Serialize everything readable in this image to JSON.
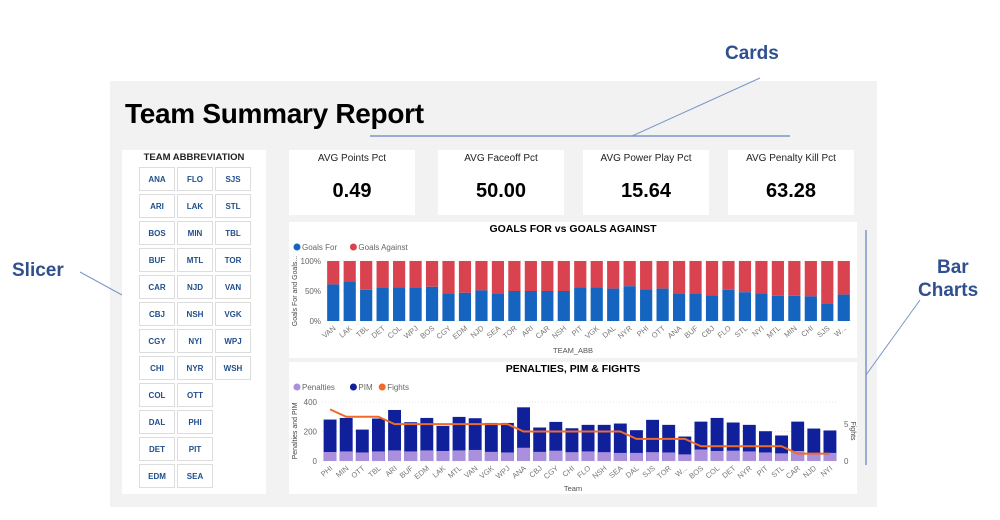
{
  "report": {
    "title": "Team Summary Report"
  },
  "annotations": {
    "cards": "Cards",
    "slicer": "Slicer",
    "bar_charts_line1": "Bar",
    "bar_charts_line2": "Charts"
  },
  "slicer": {
    "title": "TEAM ABBREVIATION",
    "items": [
      "ANA",
      "ARI",
      "BOS",
      "BUF",
      "CAR",
      "CBJ",
      "CGY",
      "CHI",
      "COL",
      "DAL",
      "DET",
      "EDM",
      "FLO",
      "LAK",
      "MIN",
      "MTL",
      "NJD",
      "NSH",
      "NYI",
      "NYR",
      "OTT",
      "PHI",
      "PIT",
      "SEA",
      "SJS",
      "STL",
      "TBL",
      "TOR",
      "VAN",
      "VGK",
      "WPJ",
      "WSH"
    ]
  },
  "cards": [
    {
      "label": "AVG Points Pct",
      "value": "0.49"
    },
    {
      "label": "AVG Faceoff Pct",
      "value": "50.00"
    },
    {
      "label": "AVG Power Play Pct",
      "value": "15.64"
    },
    {
      "label": "AVG Penalty Kill Pct",
      "value": "63.28"
    }
  ],
  "chart_data": [
    {
      "type": "bar",
      "stacked": "100%",
      "title": "GOALS FOR vs GOALS AGAINST",
      "xlabel": "TEAM_ABB",
      "ylabel": "Goals For and Goals...",
      "yticks": [
        "0%",
        "50%",
        "100%"
      ],
      "ylim": [
        0,
        100
      ],
      "colors": {
        "Goals For": "#1565c0",
        "Goals Against": "#d9434f"
      },
      "legend": "top-left",
      "categories": [
        "VAN",
        "LAK",
        "TBL",
        "DET",
        "COL",
        "WPJ",
        "BOS",
        "CGY",
        "EDM",
        "NJD",
        "SEA",
        "TOR",
        "ARI",
        "CAR",
        "NSH",
        "PIT",
        "VGK",
        "DAL",
        "NYR",
        "PHI",
        "OTT",
        "ANA",
        "BUF",
        "CBJ",
        "FLO",
        "STL",
        "NYI",
        "MTL",
        "MIN",
        "CHI",
        "SJS",
        "W..."
      ],
      "series": [
        {
          "name": "Goals For",
          "values": [
            61,
            65,
            52,
            55,
            56,
            55,
            57,
            46,
            47,
            51,
            45,
            50,
            50,
            50,
            50,
            56,
            56,
            54,
            58,
            53,
            54,
            45,
            45,
            43,
            52,
            48,
            46,
            42,
            42,
            41,
            29,
            44
          ]
        },
        {
          "name": "Goals Against",
          "values": [
            39,
            35,
            48,
            45,
            44,
            45,
            43,
            54,
            53,
            49,
            55,
            50,
            50,
            50,
            50,
            44,
            44,
            46,
            42,
            47,
            46,
            55,
            55,
            57,
            48,
            52,
            54,
            58,
            58,
            59,
            71,
            56
          ]
        }
      ]
    },
    {
      "type": "bar",
      "title": "PENALTIES, PIM & FIGHTS",
      "xlabel": "Team",
      "ylabel": "Penalties and PIM",
      "y2label": "Fights",
      "yticks": [
        "0",
        "200",
        "400"
      ],
      "ylim": [
        0,
        400
      ],
      "y2ticks": [
        "0",
        "5"
      ],
      "y2lim": [
        0,
        8
      ],
      "colors": {
        "Penalties": "#a98fdc",
        "PIM": "#10209a",
        "Fights": "#f06a2a"
      },
      "legend": "top-left",
      "categories": [
        "PHI",
        "MIN",
        "OTT",
        "TBL",
        "ARI",
        "BUF",
        "EDM",
        "LAK",
        "MTL",
        "VAN",
        "VGK",
        "WPJ",
        "ANA",
        "CBJ",
        "CGY",
        "CHI",
        "FLO",
        "NSH",
        "SEA",
        "DAL",
        "SJS",
        "TOR",
        "W...",
        "BOS",
        "COL",
        "DET",
        "NYR",
        "PIT",
        "STL",
        "CAR",
        "NJD",
        "NYI"
      ],
      "series": [
        {
          "name": "Penalties",
          "values": [
            61,
            65,
            58,
            65,
            72,
            65,
            72,
            68,
            72,
            75,
            62,
            58,
            90,
            62,
            70,
            60,
            65,
            60,
            55,
            55,
            60,
            58,
            45,
            78,
            68,
            70,
            65,
            58,
            52,
            68,
            55,
            55
          ]
        },
        {
          "name": "PIM",
          "values": [
            281,
            292,
            213,
            288,
            346,
            263,
            292,
            238,
            299,
            290,
            258,
            258,
            364,
            227,
            265,
            222,
            245,
            245,
            254,
            209,
            279,
            245,
            166,
            267,
            292,
            261,
            245,
            202,
            173,
            267,
            220,
            207
          ]
        },
        {
          "name": "Fights",
          "type": "line",
          "values": [
            7,
            6,
            6,
            6,
            5,
            5,
            5,
            5,
            5,
            5,
            5,
            5,
            4,
            4,
            4,
            4,
            4,
            4,
            4,
            3,
            3,
            3,
            3,
            2,
            2,
            2,
            2,
            2,
            2,
            1,
            1,
            1
          ]
        }
      ]
    }
  ]
}
